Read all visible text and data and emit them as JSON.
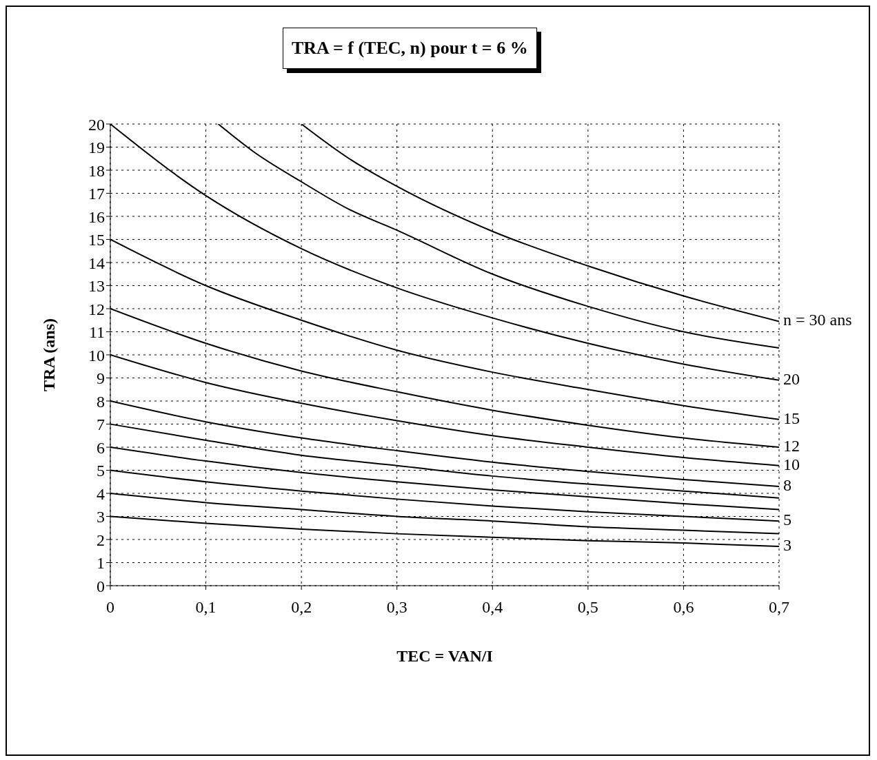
{
  "chart_data": {
    "type": "line",
    "title": "TRA = f (TEC, n) pour t = 6 %",
    "xlabel": "TEC = VAN/I",
    "ylabel": "TRA (ans)",
    "xlim": [
      0,
      0.7
    ],
    "xticks": [
      0,
      {
        "value": 0.1,
        "label": "0,1"
      },
      {
        "value": 0.2,
        "label": "0,2"
      },
      {
        "value": 0.3,
        "label": "0,3"
      },
      {
        "value": 0.4,
        "label": "0,4"
      },
      {
        "value": 0.5,
        "label": "0,5"
      },
      {
        "value": 0.6,
        "label": "0,6"
      },
      {
        "value": 0.7,
        "label": "0,7"
      }
    ],
    "ylim": [
      0,
      20
    ],
    "yticks": [
      0,
      1,
      2,
      3,
      4,
      5,
      6,
      7,
      8,
      9,
      10,
      11,
      12,
      13,
      14,
      15,
      16,
      17,
      18,
      19,
      20
    ],
    "grid": true,
    "legend": false,
    "marker": "none",
    "line_style": "solid",
    "series": [
      {
        "name": "n = 30 ans",
        "color": "#000000",
        "x": [
          0.2,
          0.25,
          0.3,
          0.4,
          0.5,
          0.6,
          0.7
        ],
        "values": [
          20,
          18.5,
          17.3,
          15.35,
          13.85,
          12.55,
          11.45
        ]
      },
      {
        "color": "#000000",
        "x": [
          0.113,
          0.15,
          0.2,
          0.25,
          0.3,
          0.4,
          0.5,
          0.6,
          0.7
        ],
        "values": [
          20,
          18.8,
          17.5,
          16.3,
          15.4,
          13.5,
          12.1,
          11.0,
          10.3
        ]
      },
      {
        "name": "20",
        "color": "#000000",
        "x": [
          0,
          0.1,
          0.2,
          0.3,
          0.4,
          0.5,
          0.6,
          0.7
        ],
        "values": [
          20,
          16.9,
          14.6,
          12.9,
          11.6,
          10.5,
          9.6,
          8.9
        ]
      },
      {
        "name": "15",
        "color": "#000000",
        "x": [
          0,
          0.1,
          0.2,
          0.3,
          0.4,
          0.5,
          0.6,
          0.7
        ],
        "values": [
          15,
          13.0,
          11.5,
          10.2,
          9.25,
          8.5,
          7.8,
          7.2
        ]
      },
      {
        "name": "12",
        "color": "#000000",
        "x": [
          0,
          0.1,
          0.2,
          0.3,
          0.4,
          0.5,
          0.6,
          0.7
        ],
        "values": [
          12,
          10.5,
          9.3,
          8.4,
          7.6,
          6.95,
          6.4,
          6.0
        ]
      },
      {
        "name": "10",
        "color": "#000000",
        "x": [
          0,
          0.1,
          0.2,
          0.3,
          0.4,
          0.5,
          0.6,
          0.7
        ],
        "values": [
          10,
          8.8,
          7.9,
          7.15,
          6.5,
          6.0,
          5.55,
          5.2
        ]
      },
      {
        "name": "8",
        "color": "#000000",
        "x": [
          0,
          0.1,
          0.2,
          0.3,
          0.4,
          0.5,
          0.6,
          0.7
        ],
        "values": [
          8,
          7.1,
          6.4,
          5.85,
          5.35,
          4.95,
          4.6,
          4.3
        ]
      },
      {
        "color": "#000000",
        "x": [
          0,
          0.1,
          0.2,
          0.3,
          0.4,
          0.5,
          0.6,
          0.7
        ],
        "values": [
          7,
          6.3,
          5.65,
          5.2,
          4.75,
          4.4,
          4.1,
          3.8
        ]
      },
      {
        "color": "#000000",
        "x": [
          0,
          0.1,
          0.2,
          0.3,
          0.4,
          0.5,
          0.6,
          0.7
        ],
        "values": [
          6,
          5.4,
          4.9,
          4.5,
          4.15,
          3.85,
          3.55,
          3.3
        ]
      },
      {
        "name": "5",
        "color": "#000000",
        "x": [
          0,
          0.1,
          0.2,
          0.3,
          0.4,
          0.5,
          0.6,
          0.7
        ],
        "values": [
          5,
          4.5,
          4.1,
          3.75,
          3.45,
          3.2,
          3.0,
          2.8
        ]
      },
      {
        "color": "#000000",
        "x": [
          0,
          0.1,
          0.2,
          0.3,
          0.4,
          0.5,
          0.6,
          0.7
        ],
        "values": [
          4,
          3.6,
          3.3,
          3.0,
          2.8,
          2.55,
          2.4,
          2.25
        ]
      },
      {
        "name": "3",
        "color": "#000000",
        "x": [
          0,
          0.1,
          0.2,
          0.3,
          0.4,
          0.5,
          0.6,
          0.7
        ],
        "values": [
          3,
          2.7,
          2.45,
          2.25,
          2.1,
          1.95,
          1.85,
          1.7
        ]
      }
    ]
  }
}
